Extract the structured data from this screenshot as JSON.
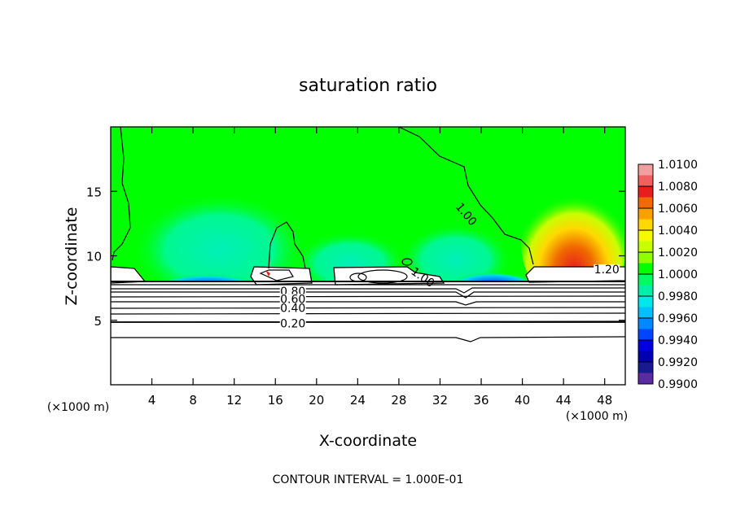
{
  "chart_data": {
    "type": "heatmap",
    "title": "saturation ratio",
    "xlabel": "X-coordinate",
    "ylabel": "Z-coordinate",
    "x_unit_left": "(×1000 m)",
    "x_unit_right": "(×1000 m)",
    "footer": "CONTOUR INTERVAL = 1.000E-01",
    "xlim": [
      0,
      50
    ],
    "ylim": [
      0,
      20
    ],
    "x_ticks": [
      4,
      8,
      12,
      16,
      20,
      24,
      28,
      32,
      36,
      40,
      44,
      48
    ],
    "y_ticks": [
      5,
      10,
      15
    ],
    "colorbar": {
      "labels": [
        "1.0100",
        "1.0080",
        "1.0060",
        "1.0040",
        "1.0020",
        "1.0000",
        "0.9980",
        "0.9960",
        "0.9940",
        "0.9920",
        "0.9900"
      ],
      "colors": [
        "#f0a0a0",
        "#f06060",
        "#e61e1e",
        "#f06a00",
        "#fba000",
        "#ffd800",
        "#f8f800",
        "#c8ff00",
        "#90ff00",
        "#00ff00",
        "#00fb60",
        "#00f0a8",
        "#00e8e8",
        "#00c0ff",
        "#0088ff",
        "#0044ff",
        "#0000e0",
        "#0000b0",
        "#1a1a90",
        "#5a2aa0"
      ]
    },
    "contour_labels": [
      {
        "text": "1.00",
        "x": 34.5,
        "y": 13.2,
        "rotate": 50
      },
      {
        "text": "1.00",
        "x": 30.3,
        "y": 8.3,
        "rotate": 35
      },
      {
        "text": "1.20",
        "x": 48.2,
        "y": 8.9,
        "rotate": 0
      },
      {
        "text": "0.80",
        "x": 17.7,
        "y": 7.2,
        "rotate": 0
      },
      {
        "text": "0.60",
        "x": 17.7,
        "y": 6.6,
        "rotate": 0
      },
      {
        "text": "0.40",
        "x": 17.7,
        "y": 5.9,
        "rotate": 0
      },
      {
        "text": "0.20",
        "x": 17.7,
        "y": 4.7,
        "rotate": 0
      }
    ]
  }
}
